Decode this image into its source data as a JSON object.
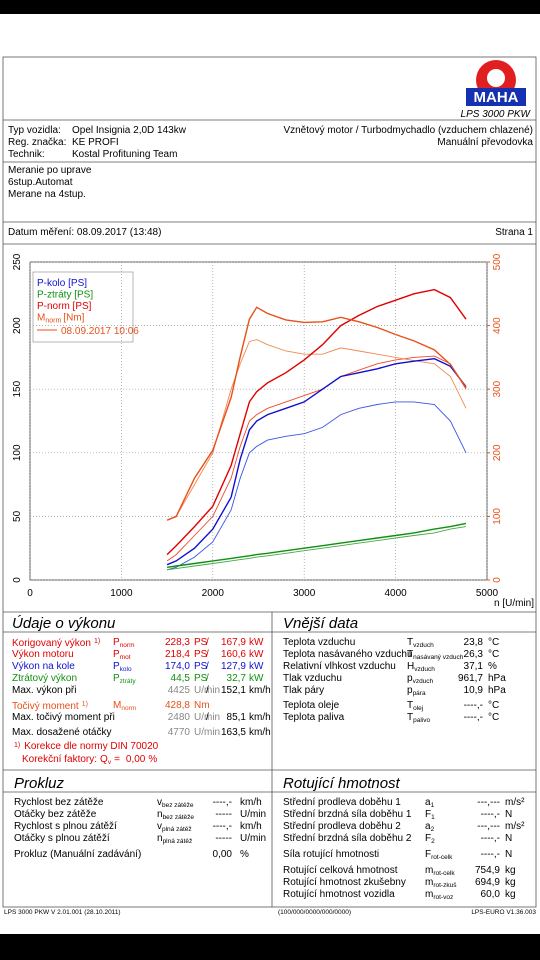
{
  "header": {
    "logo": "MAHA",
    "model": "LPS 3000 PKW"
  },
  "vehicle": {
    "rows": [
      [
        "Typ vozidla:",
        "Opel Insignia 2,0D 143kw"
      ],
      [
        "Reg. značka:",
        "KE PROFI"
      ],
      [
        "Technik:",
        "Kostal Profituning Team"
      ]
    ],
    "engine": [
      "Vznětový motor / Turbodmychadlo (vzduchem chlazené)",
      "Manuální převodovka"
    ]
  },
  "notes": [
    "Meranie po uprave",
    "6stup.Automat",
    "Merane na 4stup."
  ],
  "date": "Datum měření: 08.09.2017 (13:48)",
  "page": "Strana 1",
  "chart_data": {
    "type": "line",
    "x_label": "n [U/min]",
    "x": [
      1500,
      1600,
      1800,
      2000,
      2200,
      2300,
      2400,
      2480,
      2600,
      2800,
      3000,
      3200,
      3400,
      3600,
      3800,
      4000,
      4200,
      4425,
      4600,
      4770
    ],
    "xlim": [
      0,
      5000
    ],
    "xticks": [
      0,
      1000,
      2000,
      3000,
      4000,
      5000
    ],
    "ylim": [
      0,
      250
    ],
    "yticks": [
      0,
      50,
      100,
      150,
      200,
      250
    ],
    "y2lim": [
      0,
      500
    ],
    "y2ticks": [
      0,
      100,
      200,
      300,
      400,
      500
    ],
    "y2_color": "#e8501a",
    "grid": true,
    "legend": "top-left",
    "series": [
      {
        "name": "P-kolo [PS]",
        "color": "#1010d0",
        "values": [
          12,
          15,
          25,
          40,
          65,
          95,
          118,
          125,
          130,
          135,
          140,
          150,
          160,
          163,
          166,
          170,
          172,
          174,
          168,
          152
        ]
      },
      {
        "name": "P-ztráty [PS]",
        "color": "#109010",
        "values": [
          10,
          11,
          13,
          15,
          17,
          18,
          19,
          20,
          21,
          23,
          25,
          27,
          29,
          31,
          33,
          35,
          37,
          40,
          42,
          44.5
        ]
      },
      {
        "name": "P-norm [PS]",
        "color": "#e00000",
        "values": [
          20,
          27,
          42,
          58,
          90,
          115,
          140,
          148,
          155,
          163,
          173,
          185,
          200,
          208,
          215,
          220,
          225,
          228.3,
          222,
          205
        ]
      },
      {
        "name": "M",
        "name_sub": "norm",
        "name_unit": "[Nm]",
        "color": "#e8501a",
        "axis": "y2",
        "values": [
          94,
          100,
          160,
          204,
          287,
          351,
          410,
          428.8,
          419,
          409,
          405,
          406,
          413,
          406,
          397,
          386,
          376,
          362,
          339,
          302
        ]
      }
    ],
    "comparison": {
      "label": "08.09.2017 10:06",
      "color": "#e8501a",
      "series": [
        {
          "color": "#3a55e6",
          "values": [
            8,
            10,
            18,
            30,
            55,
            80,
            100,
            105,
            110,
            113,
            115,
            120,
            130,
            135,
            138,
            140,
            140,
            138,
            125,
            100
          ]
        },
        {
          "color": "#48a848",
          "values": [
            8,
            9,
            11,
            13,
            15,
            16,
            17,
            18,
            19,
            21,
            23,
            25,
            27,
            29,
            31,
            33,
            35,
            37,
            40,
            42
          ]
        },
        {
          "color": "#f04a2a",
          "values": [
            15,
            20,
            35,
            50,
            80,
            105,
            125,
            130,
            135,
            140,
            145,
            150,
            160,
            165,
            170,
            173,
            175,
            176,
            170,
            150
          ]
        },
        {
          "color": "#f08a50",
          "axis": "y2",
          "values": [
            94,
            100,
            150,
            200,
            300,
            340,
            375,
            378,
            370,
            360,
            355,
            355,
            365,
            360,
            355,
            350,
            345,
            340,
            320,
            270
          ]
        }
      ]
    }
  },
  "performance": {
    "title": "Údaje o výkonu",
    "rows": [
      {
        "label": "Korigovaný výkon",
        "note": "1)",
        "color": "#e00000",
        "symbol": {
          "main": "P",
          "sub": "norm"
        },
        "value1": "228,3",
        "unit1": "PS",
        "slash": "/",
        "value2": "167,9",
        "unit2": "kW"
      },
      {
        "label": "Výkon motoru",
        "color": "#e00000",
        "symbol": {
          "main": "P",
          "sub": "mot"
        },
        "value1": "218,4",
        "unit1": "PS",
        "slash": "/",
        "value2": "160,6",
        "unit2": "kW"
      },
      {
        "label": "Výkon na kole",
        "color": "#1010d0",
        "symbol": {
          "main": "P",
          "sub": "kolo"
        },
        "value1": "174,0",
        "unit1": "PS",
        "slash": "/",
        "value2": "127,9",
        "unit2": "kW"
      },
      {
        "label": "Ztrátový výkon",
        "color": "#109010",
        "symbol": {
          "main": "P",
          "sub": "ztráty"
        },
        "value1": "44,5",
        "unit1": "PS",
        "slash": "/",
        "value2": "32,7",
        "unit2": "kW"
      },
      {
        "label": "Max. výkon při",
        "value1_color": "#888888",
        "value1": "4425",
        "unit1": "U/min",
        "slash": "/",
        "value2": "152,1",
        "unit2": "km/h"
      },
      {
        "label": "Točivý moment",
        "note": "1)",
        "color": "#e8501a",
        "symbol": {
          "main": "M",
          "sub": "norm"
        },
        "value1": "428,8",
        "unit1": "Nm"
      },
      {
        "label": "Max. točivý moment při",
        "value1_color": "#888888",
        "value1": "2480",
        "unit1": "U/min",
        "slash": "/",
        "value2": "85,1",
        "unit2": "km/h"
      },
      {
        "label": "Max. dosažené otáčky",
        "value1_color": "#888888",
        "value1": "4770",
        "unit1": "U/min",
        "value2": "163,5",
        "unit2": "km/h"
      }
    ],
    "footnote": {
      "mark": "1)",
      "text": "Korekce dle normy DIN 70020",
      "factor_label": "Korekční faktory:",
      "symbol": {
        "main": "Q",
        "sub": "v"
      },
      "eq": "=",
      "value": "0,00",
      "unit": "%"
    }
  },
  "external": {
    "title": "Vnější data",
    "rows": [
      {
        "label": "Teplota vzduchu",
        "symbol": {
          "main": "T",
          "sub": "vzduch"
        },
        "value1": "23,8",
        "unit1": "°C"
      },
      {
        "label": "Teplota nasávaného vzduchu",
        "symbol": {
          "main": "T",
          "sub": "nasávaný vzduch"
        },
        "value1": "26,3",
        "unit1": "°C"
      },
      {
        "label": "Relativní vlhkost vzduchu",
        "symbol": {
          "main": "H",
          "sub": "vzduch"
        },
        "value1": "37,1",
        "unit1": "%"
      },
      {
        "label": "Tlak vzduchu",
        "symbol": {
          "main": "p",
          "sub": "vzduch"
        },
        "value1": "961,7",
        "unit1": "hPa"
      },
      {
        "label": "Tlak páry",
        "symbol": {
          "main": "p",
          "sub": "pára"
        },
        "value1": "10,9",
        "unit1": "hPa"
      },
      {
        "label": "Teplota oleje",
        "symbol": {
          "main": "T",
          "sub": "olej"
        },
        "value1": "----,-",
        "unit1": "°C"
      },
      {
        "label": "Teplota paliva",
        "symbol": {
          "main": "T",
          "sub": "palivo"
        },
        "value1": "----,-",
        "unit1": "°C"
      }
    ]
  },
  "slip": {
    "title": "Prokluz",
    "rows": [
      {
        "label": "Rychlost bez zátěže",
        "symbol": {
          "main": "v",
          "sub": "bez zátěže"
        },
        "value1": "----,-",
        "unit1": "km/h"
      },
      {
        "label": "Otáčky bez zátěže",
        "symbol": {
          "main": "n",
          "sub": "bez zátěže"
        },
        "value1": "-----",
        "unit1": "U/min"
      },
      {
        "label": "Rychlost s plnou zátěží",
        "symbol": {
          "main": "v",
          "sub": "plná zátěž"
        },
        "value1": "----,-",
        "unit1": "km/h"
      },
      {
        "label": "Otáčky s plnou zátěží",
        "symbol": {
          "main": "n",
          "sub": "plná zátěž"
        },
        "value1": "-----",
        "unit1": "U/min"
      },
      {
        "label": "Prokluz (Manuální zadávání)",
        "value1": "0,00",
        "unit1": "%"
      }
    ]
  },
  "rotating": {
    "title": "Rotující hmotnost",
    "rows": [
      {
        "label": "Střední prodleva doběhu 1",
        "symbol": {
          "main": "a",
          "sub": "1"
        },
        "value1": "---,---",
        "unit1": "m/s²"
      },
      {
        "label": "Střední brzdná síla doběhu 1",
        "symbol": {
          "main": "F",
          "sub": "1"
        },
        "value1": "----,-",
        "unit1": "N"
      },
      {
        "label": "Střední prodleva doběhu 2",
        "symbol": {
          "main": "a",
          "sub": "2"
        },
        "value1": "---,---",
        "unit1": "m/s²"
      },
      {
        "label": "Střední brzdná síla doběhu 2",
        "symbol": {
          "main": "F",
          "sub": "2"
        },
        "value1": "----,-",
        "unit1": "N"
      },
      {
        "label": "Síla rotující hmotnosti",
        "symbol": {
          "main": "F",
          "sub": "rot-celk"
        },
        "value1": "----,-",
        "unit1": "N"
      },
      {
        "label": "Rotující celková hmotnost",
        "symbol": {
          "main": "m",
          "sub": "rot-celk"
        },
        "value1": "754,9",
        "unit1": "kg"
      },
      {
        "label": "Rotující hmotnost zkušebny",
        "symbol": {
          "main": "m",
          "sub": "rot-zkuš"
        },
        "value1": "694,9",
        "unit1": "kg"
      },
      {
        "label": "Rotující hmotnost vozidla",
        "symbol": {
          "main": "m",
          "sub": "rot-voz"
        },
        "value1": "60,0",
        "unit1": "kg"
      }
    ]
  },
  "footer": {
    "left": "LPS 3000 PKW V 2.01.001 (28.10.2011)",
    "center": "(100/000/0000/000/0000)",
    "right": "LPS-EURO V1.36.003"
  }
}
